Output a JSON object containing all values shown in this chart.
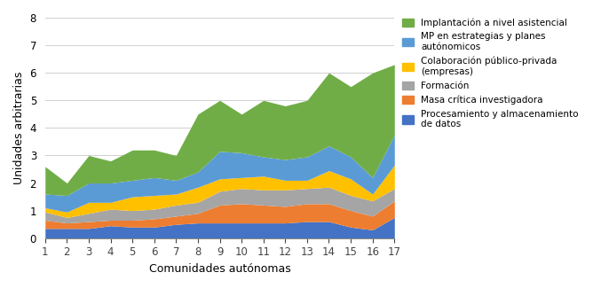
{
  "x": [
    1,
    2,
    3,
    4,
    5,
    6,
    7,
    8,
    9,
    10,
    11,
    12,
    13,
    14,
    15,
    16,
    17
  ],
  "series": {
    "Procesamiento y almacenamiento\nde datos": [
      0.35,
      0.35,
      0.35,
      0.45,
      0.4,
      0.4,
      0.5,
      0.55,
      0.55,
      0.55,
      0.55,
      0.55,
      0.6,
      0.6,
      0.4,
      0.3,
      0.75
    ],
    "Masa crítica investigadora": [
      0.3,
      0.2,
      0.25,
      0.2,
      0.25,
      0.3,
      0.3,
      0.35,
      0.65,
      0.7,
      0.65,
      0.6,
      0.65,
      0.65,
      0.6,
      0.5,
      0.6
    ],
    "Formación": [
      0.3,
      0.2,
      0.3,
      0.4,
      0.35,
      0.35,
      0.4,
      0.4,
      0.5,
      0.55,
      0.55,
      0.6,
      0.55,
      0.6,
      0.55,
      0.55,
      0.45
    ],
    "Colaboración público-privada\n(empresas)": [
      0.15,
      0.2,
      0.4,
      0.25,
      0.5,
      0.5,
      0.4,
      0.55,
      0.45,
      0.4,
      0.5,
      0.35,
      0.3,
      0.6,
      0.6,
      0.25,
      0.85
    ],
    "MP en estrategias y planes\nautónomicos": [
      0.5,
      0.6,
      0.7,
      0.7,
      0.6,
      0.65,
      0.5,
      0.55,
      1.0,
      0.9,
      0.7,
      0.75,
      0.85,
      0.9,
      0.8,
      0.6,
      1.1
    ],
    "Implantación a nivel asistencial": [
      1.0,
      0.45,
      1.0,
      0.8,
      1.1,
      1.0,
      0.9,
      2.1,
      1.85,
      1.4,
      2.05,
      1.95,
      2.05,
      2.65,
      2.55,
      3.8,
      2.55
    ]
  },
  "colors": {
    "Procesamiento y almacenamiento\nde datos": "#4472c4",
    "Masa crítica investigadora": "#ed7d31",
    "Formación": "#a5a5a5",
    "Colaboración público-privada\n(empresas)": "#ffc000",
    "MP en estrategias y planes\nautónomicos": "#5b9bd5",
    "Implantación a nivel asistencial": "#70ad47"
  },
  "series_order": [
    "Procesamiento y almacenamiento\nde datos",
    "Masa crítica investigadora",
    "Formación",
    "Colaboración público-privada\n(empresas)",
    "MP en estrategias y planes\nautónomicos",
    "Implantación a nivel asistencial"
  ],
  "legend_order": [
    "Implantación a nivel asistencial",
    "MP en estrategias y planes\nautónomicos",
    "Colaboración público-privada\n(empresas)",
    "Formación",
    "Masa crítica investigadora",
    "Procesamiento y almacenamiento\nde datos"
  ],
  "xlabel": "Comunidades autónomas",
  "ylabel": "Unidades arbitrarias",
  "ylim": [
    0,
    8
  ],
  "yticks": [
    0,
    1,
    2,
    3,
    4,
    5,
    6,
    7,
    8
  ],
  "xticks": [
    1,
    2,
    3,
    4,
    5,
    6,
    7,
    8,
    9,
    10,
    11,
    12,
    13,
    14,
    15,
    16,
    17
  ],
  "figsize": [
    6.68,
    3.25
  ],
  "dpi": 100
}
